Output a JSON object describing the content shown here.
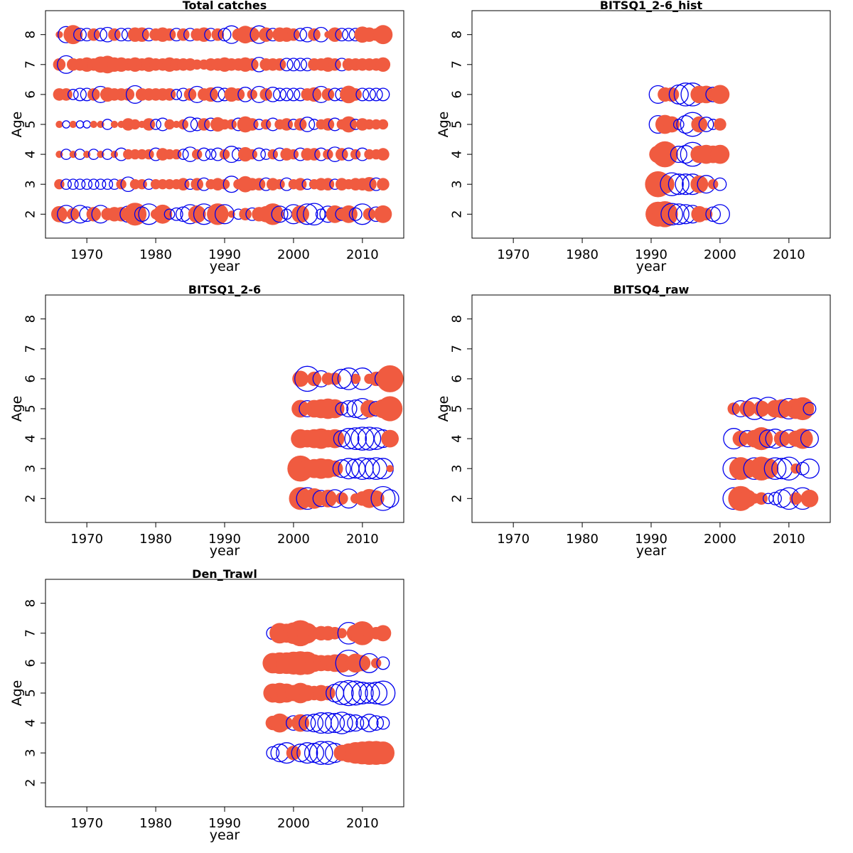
{
  "colors": {
    "positive": "#f05b40",
    "negative": "#0000ee",
    "frame": "#000000"
  },
  "chart_data": [
    {
      "type": "scatter",
      "title": "Total catches",
      "xlabel": "year",
      "ylabel": "Age",
      "xlim": [
        1964,
        2016
      ],
      "ylim": [
        1.2,
        8.8
      ],
      "x_ticks": [
        1970,
        1980,
        1990,
        2000,
        2010
      ],
      "y_ticks": [
        2,
        3,
        4,
        5,
        6,
        7,
        8
      ],
      "grid": false,
      "ages": [
        2,
        3,
        4,
        5,
        6,
        7,
        8
      ],
      "years": [
        1966,
        1967,
        1968,
        1969,
        1970,
        1971,
        1972,
        1973,
        1974,
        1975,
        1976,
        1977,
        1978,
        1979,
        1980,
        1981,
        1982,
        1983,
        1984,
        1985,
        1986,
        1987,
        1988,
        1989,
        1990,
        1991,
        1992,
        1993,
        1994,
        1995,
        1996,
        1997,
        1998,
        1999,
        2000,
        2001,
        2002,
        2003,
        2004,
        2005,
        2006,
        2007,
        2008,
        2009,
        2010,
        2011,
        2012,
        2013
      ],
      "residuals": [
        [
          0.5,
          -0.6,
          0.3,
          -0.6,
          -0.4,
          0.4,
          -0.6,
          0.3,
          0.4,
          0.4,
          -0.5,
          1.0,
          -0.4,
          -0.8,
          0.2,
          0.7,
          -0.2,
          -0.3,
          -0.4,
          -0.7,
          0.6,
          -0.8,
          -0.4,
          0.9,
          -0.7,
          0.1,
          -0.2,
          0.3,
          -0.3,
          0.4,
          0.5,
          0.9,
          -0.5,
          -0.2,
          -0.7,
          0.6,
          -0.8,
          -0.9,
          -0.2,
          -0.5,
          0.6,
          -0.3,
          0.6,
          -0.3,
          -0.8,
          0.3,
          -0.4,
          0.6
        ],
        [
          0.2,
          -0.2,
          -0.2,
          -0.2,
          -0.2,
          -0.2,
          -0.2,
          -0.2,
          -0.2,
          0.2,
          -0.4,
          0.2,
          0.2,
          -0.2,
          0.2,
          0.2,
          0.2,
          0.2,
          0.3,
          -0.2,
          0.3,
          -0.3,
          0.2,
          0.3,
          0.2,
          -0.5,
          0.2,
          0.5,
          0.3,
          0.3,
          -0.3,
          0.3,
          0.2,
          -0.3,
          0.2,
          0.3,
          -0.2,
          0.2,
          0.3,
          0.3,
          -0.2,
          0.3,
          0.2,
          0.3,
          0.3,
          0.4,
          -0.3,
          0.3
        ],
        [
          0.1,
          -0.2,
          0.1,
          -0.2,
          0.1,
          -0.2,
          0.1,
          -0.2,
          0.1,
          -0.3,
          0.2,
          0.2,
          0.2,
          0.2,
          -0.3,
          0.3,
          0.2,
          0.2,
          -0.2,
          -0.4,
          0.2,
          -0.3,
          -0.2,
          -0.3,
          0.2,
          -0.5,
          -0.3,
          0.4,
          0.2,
          -0.3,
          -0.2,
          0.2,
          -0.3,
          0.3,
          0.2,
          -0.3,
          0.3,
          0.3,
          -0.3,
          0.2,
          -0.4,
          0.3,
          -0.3,
          0.2,
          -0.3,
          0.2,
          0.2,
          0.3
        ],
        [
          0.1,
          -0.1,
          0.1,
          -0.1,
          -0.1,
          0.1,
          0.1,
          -0.2,
          0.1,
          0.1,
          0.3,
          0.2,
          0.1,
          0.3,
          -0.2,
          -0.3,
          0.2,
          0.1,
          0.2,
          -0.4,
          -0.3,
          0.3,
          -0.3,
          0.4,
          0.2,
          0.2,
          -0.3,
          0.5,
          0.3,
          -0.2,
          0.2,
          -0.3,
          0.2,
          0.3,
          -0.2,
          0.3,
          -0.4,
          -0.2,
          0.2,
          0.3,
          -0.3,
          0.2,
          0.5,
          -0.2,
          0.3,
          0.2,
          0.2,
          0.2
        ],
        [
          0.3,
          0.3,
          -0.2,
          -0.3,
          -0.3,
          0.3,
          -0.5,
          0.4,
          0.3,
          0.3,
          0.3,
          -0.6,
          0.3,
          0.3,
          0.3,
          0.3,
          0.3,
          -0.2,
          -0.3,
          0.3,
          -0.5,
          0.3,
          0.4,
          -0.4,
          -0.3,
          0.4,
          0.3,
          -0.4,
          0.2,
          -0.5,
          0.3,
          -0.4,
          -0.3,
          -0.3,
          -0.3,
          -0.3,
          0.3,
          0.4,
          -0.5,
          0.3,
          -0.3,
          -0.3,
          0.6,
          0.3,
          -0.3,
          -0.3,
          -0.3,
          -0.3
        ],
        [
          0.3,
          -0.6,
          0.3,
          0.3,
          0.4,
          0.3,
          0.5,
          0.6,
          0.4,
          0.4,
          0.3,
          0.4,
          0.3,
          0.4,
          0.3,
          0.3,
          0.4,
          0.3,
          0.3,
          0.3,
          0.2,
          0.2,
          0.3,
          0.3,
          0.4,
          0.3,
          0.3,
          0.4,
          0.3,
          -0.4,
          0.3,
          0.3,
          0.3,
          -0.3,
          -0.3,
          -0.3,
          -0.3,
          0.3,
          0.3,
          0.4,
          0.3,
          -0.3,
          0.3,
          0.3,
          0.3,
          0.3,
          0.3,
          0.4
        ],
        [
          0.1,
          -0.5,
          0.7,
          -0.3,
          -0.3,
          0.3,
          -0.3,
          -0.4,
          0.3,
          -0.3,
          -0.3,
          0.4,
          0.4,
          -0.3,
          0.3,
          0.4,
          0.3,
          -0.3,
          0.3,
          -0.3,
          0.3,
          0.4,
          -0.3,
          0.3,
          -0.3,
          -0.6,
          0.3,
          0.6,
          0.4,
          -0.6,
          0.4,
          -0.3,
          0.4,
          0.4,
          0.3,
          -0.3,
          -0.4,
          0.3,
          -0.4,
          0.1,
          0.4,
          -0.3,
          -0.3,
          -0.3,
          0.5,
          0.4,
          0.3,
          0.7
        ]
      ]
    },
    {
      "type": "scatter",
      "title": "BITSQ1_2-6_hist",
      "xlabel": "year",
      "ylabel": "Age",
      "xlim": [
        1964,
        2016
      ],
      "ylim": [
        1.2,
        8.8
      ],
      "x_ticks": [
        1970,
        1980,
        1990,
        2000,
        2010
      ],
      "y_ticks": [
        2,
        3,
        4,
        5,
        6,
        7,
        8
      ],
      "grid": false,
      "ages": [
        2,
        3,
        4,
        5,
        6
      ],
      "years": [
        1991,
        1992,
        1993,
        1994,
        1995,
        1996,
        1997,
        1998,
        1999,
        2000
      ],
      "residuals": [
        [
          1.2,
          1.3,
          -0.9,
          -0.8,
          -0.7,
          -0.6,
          0.5,
          0.3,
          -0.4,
          -0.7
        ],
        [
          1.3,
          0.7,
          -1.0,
          -0.8,
          -0.8,
          -0.8,
          0.6,
          -0.6,
          0.2,
          -0.3
        ],
        [
          0.6,
          1.3,
          0.1,
          -0.5,
          -0.6,
          -1.1,
          0.6,
          0.7,
          0.6,
          0.7
        ],
        [
          -0.6,
          0.7,
          0.5,
          -0.2,
          -0.6,
          -1.1,
          0.5,
          -0.4,
          -0.2,
          0.3
        ],
        [
          -0.6,
          0.4,
          0.4,
          -0.7,
          -1.0,
          -1.0,
          0.6,
          0.6,
          -0.4,
          0.7
        ]
      ]
    },
    {
      "type": "scatter",
      "title": "BITSQ1_2-6",
      "xlabel": "year",
      "ylabel": "Age",
      "xlim": [
        1964,
        2016
      ],
      "ylim": [
        1.2,
        8.8
      ],
      "x_ticks": [
        1970,
        1980,
        1990,
        2000,
        2010
      ],
      "y_ticks": [
        2,
        3,
        4,
        5,
        6,
        7,
        8
      ],
      "grid": false,
      "ages": [
        2,
        3,
        4,
        5,
        6
      ],
      "years": [
        2001,
        2002,
        2003,
        2004,
        2005,
        2006,
        2007,
        2008,
        2009,
        2010,
        2011,
        2012,
        2013,
        2014
      ],
      "residuals": [
        [
          1.0,
          -0.9,
          0.8,
          -0.5,
          0.6,
          -0.6,
          0.3,
          -0.7,
          0.2,
          0.4,
          0.7,
          0.5,
          -1.1,
          -0.6
        ],
        [
          1.3,
          0.6,
          0.7,
          0.8,
          0.7,
          0.5,
          -0.6,
          -0.8,
          -0.7,
          -0.9,
          -0.8,
          -0.9,
          -0.8,
          0.1
        ],
        [
          0.7,
          0.6,
          0.7,
          0.8,
          0.6,
          0.7,
          -0.5,
          -0.8,
          -0.9,
          -1.0,
          -1.0,
          -0.9,
          -0.6,
          0.6
        ],
        [
          0.6,
          -0.5,
          0.6,
          0.7,
          0.8,
          0.7,
          -0.3,
          -0.5,
          -0.6,
          -0.8,
          0.6,
          -0.4,
          0.7,
          1.2
        ],
        [
          0.5,
          -1.2,
          0.4,
          -0.5,
          0.3,
          0.3,
          -0.7,
          -0.9,
          0.2,
          -0.9,
          0.2,
          0.4,
          -0.5,
          1.4
        ]
      ]
    },
    {
      "type": "scatter",
      "title": "BITSQ4_raw",
      "xlabel": "year",
      "ylabel": "Age",
      "xlim": [
        1964,
        2016
      ],
      "ylim": [
        1.2,
        8.8
      ],
      "x_ticks": [
        1970,
        1980,
        1990,
        2000,
        2010
      ],
      "y_ticks": [
        2,
        3,
        4,
        5,
        6,
        7,
        8
      ],
      "grid": false,
      "ages": [
        2,
        3,
        4,
        5
      ],
      "years": [
        2002,
        2003,
        2004,
        2005,
        2006,
        2007,
        2008,
        2009,
        2010,
        2011,
        2012,
        2013
      ],
      "residuals": [
        [
          -0.9,
          1.2,
          0.6,
          0.2,
          0.3,
          -0.2,
          -0.3,
          -0.6,
          -0.9,
          0.3,
          -0.9,
          0.6
        ],
        [
          -0.9,
          1.0,
          0.7,
          -0.9,
          1.1,
          0.8,
          -0.9,
          -0.8,
          -1.0,
          0.2,
          -0.3,
          -0.7
        ],
        [
          -0.8,
          0.5,
          -0.5,
          0.6,
          1.0,
          -0.6,
          -0.7,
          0.5,
          -0.6,
          0.5,
          0.8,
          -0.6
        ],
        [
          0.3,
          -0.5,
          0.5,
          -0.9,
          0.5,
          -1.0,
          0.6,
          0.7,
          -0.8,
          0.8,
          1.0,
          -0.3
        ]
      ]
    },
    {
      "type": "scatter",
      "title": "Den_Trawl",
      "xlabel": "year",
      "ylabel": "Age",
      "xlim": [
        1964,
        2016
      ],
      "ylim": [
        1.2,
        8.8
      ],
      "x_ticks": [
        1970,
        1980,
        1990,
        2000,
        2010
      ],
      "y_ticks": [
        2,
        3,
        4,
        5,
        6,
        7,
        8
      ],
      "grid": false,
      "ages": [
        3,
        4,
        5,
        6,
        7
      ],
      "years": [
        1997,
        1998,
        1999,
        2000,
        2001,
        2002,
        2003,
        2004,
        2005,
        2006,
        2007,
        2008,
        2009,
        2010,
        2011,
        2012,
        2013
      ],
      "residuals": [
        [
          -0.3,
          -0.6,
          -0.8,
          0.4,
          -0.6,
          -0.8,
          -0.7,
          -1.0,
          -1.0,
          -0.7,
          0.5,
          0.7,
          0.9,
          1.0,
          1.1,
          1.1,
          1.0
        ],
        [
          0.4,
          0.7,
          0.3,
          -0.4,
          0.6,
          -0.5,
          -0.6,
          -0.8,
          -0.8,
          -0.7,
          -0.9,
          -0.6,
          -0.5,
          -0.3,
          -0.6,
          -0.4,
          -0.3
        ],
        [
          0.7,
          0.8,
          0.7,
          0.5,
          0.8,
          0.5,
          0.4,
          0.5,
          0.4,
          -0.6,
          -1.0,
          -1.2,
          -1.1,
          -0.9,
          -0.8,
          -0.9,
          -1.1
        ],
        [
          0.8,
          0.9,
          0.9,
          1.0,
          1.1,
          1.0,
          0.6,
          0.5,
          0.5,
          0.6,
          0.7,
          -1.3,
          0.7,
          0.5,
          -0.7,
          0.2,
          -0.3
        ],
        [
          -0.3,
          0.8,
          0.7,
          0.9,
          1.3,
          0.8,
          0.3,
          0.4,
          0.4,
          0.3,
          0.2,
          -0.9,
          0.6,
          1.1,
          0.3,
          0.3,
          0.5
        ]
      ]
    }
  ]
}
